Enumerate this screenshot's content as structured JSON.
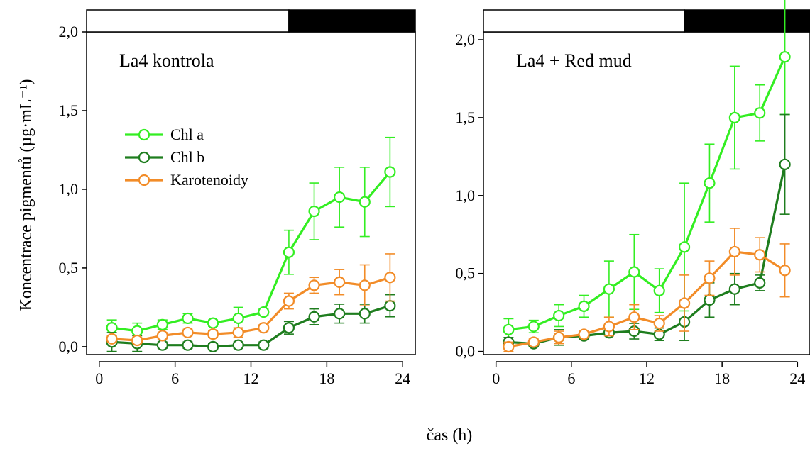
{
  "figure": {
    "ylabel": "Koncentrace pigmentů (µg·mL⁻¹)",
    "xlabel": "čas (h)"
  },
  "legend": [
    {
      "label": "Chl a",
      "color": "#33ee22"
    },
    {
      "label": "Chl b",
      "color": "#1e7d1e"
    },
    {
      "label": "Karotenoidy",
      "color": "#f28c28"
    }
  ],
  "chart_data": [
    {
      "type": "line",
      "panel_label": "La4 kontrola",
      "x": [
        1,
        3,
        5,
        7,
        9,
        11,
        13,
        15,
        17,
        19,
        21,
        23
      ],
      "xlim": [
        -1,
        25
      ],
      "ylim": [
        -0.05,
        2.0
      ],
      "xticks": [
        0,
        6,
        12,
        18,
        24
      ],
      "yticks": [
        0.0,
        0.5,
        1.0,
        1.5,
        2.0
      ],
      "ytick_labels": [
        "0,0",
        "0,5",
        "1,0",
        "1,5",
        "2,0"
      ],
      "light_dark_bar": {
        "light": [
          -1,
          15
        ],
        "dark": [
          15,
          25
        ]
      },
      "series": [
        {
          "name": "Chl a",
          "color": "#33ee22",
          "values": [
            0.12,
            0.1,
            0.14,
            0.18,
            0.15,
            0.18,
            0.22,
            0.6,
            0.86,
            0.95,
            0.92,
            1.11
          ],
          "errors": [
            0.05,
            0.05,
            0.03,
            0.03,
            0.02,
            0.07,
            0.02,
            0.14,
            0.18,
            0.19,
            0.22,
            0.22
          ]
        },
        {
          "name": "Chl b",
          "color": "#1e7d1e",
          "values": [
            0.03,
            0.02,
            0.01,
            0.01,
            0.0,
            0.01,
            0.01,
            0.12,
            0.19,
            0.21,
            0.21,
            0.26
          ],
          "errors": [
            0.06,
            0.05,
            0.02,
            0.02,
            0.02,
            0.02,
            0.02,
            0.04,
            0.05,
            0.06,
            0.06,
            0.07
          ]
        },
        {
          "name": "Karotenoidy",
          "color": "#f28c28",
          "values": [
            0.05,
            0.04,
            0.07,
            0.09,
            0.08,
            0.09,
            0.12,
            0.29,
            0.39,
            0.41,
            0.39,
            0.44
          ],
          "errors": [
            0.02,
            0.02,
            0.02,
            0.02,
            0.02,
            0.03,
            0.02,
            0.05,
            0.05,
            0.08,
            0.13,
            0.15
          ]
        }
      ]
    },
    {
      "type": "line",
      "panel_label": "La4 + Red mud",
      "x": [
        1,
        3,
        5,
        7,
        9,
        11,
        13,
        15,
        17,
        19,
        21,
        23
      ],
      "xlim": [
        -1,
        25
      ],
      "ylim": [
        -0.02,
        2.05
      ],
      "xticks": [
        0,
        6,
        12,
        18,
        24
      ],
      "yticks": [
        0.0,
        0.5,
        1.0,
        1.5,
        2.0
      ],
      "ytick_labels": [
        "0,0",
        "0,5",
        "1,0",
        "1,5",
        "2,0"
      ],
      "light_dark_bar": {
        "light": [
          -1,
          15
        ],
        "dark": [
          15,
          25
        ]
      },
      "series": [
        {
          "name": "Chl a",
          "color": "#33ee22",
          "values": [
            0.14,
            0.16,
            0.23,
            0.29,
            0.4,
            0.51,
            0.39,
            0.67,
            1.08,
            1.5,
            1.53,
            1.89
          ],
          "errors": [
            0.07,
            0.04,
            0.07,
            0.07,
            0.18,
            0.24,
            0.14,
            0.41,
            0.25,
            0.33,
            0.18,
            0.37
          ]
        },
        {
          "name": "Chl b",
          "color": "#1e7d1e",
          "values": [
            0.06,
            0.05,
            0.09,
            0.1,
            0.12,
            0.13,
            0.11,
            0.19,
            0.33,
            0.4,
            0.44,
            1.2
          ],
          "errors": [
            0.03,
            0.02,
            0.05,
            0.02,
            0.02,
            0.05,
            0.04,
            0.12,
            0.11,
            0.1,
            0.05,
            0.32
          ]
        },
        {
          "name": "Karotenoidy",
          "color": "#f28c28",
          "values": [
            0.03,
            0.06,
            0.09,
            0.11,
            0.16,
            0.22,
            0.18,
            0.31,
            0.47,
            0.64,
            0.62,
            0.52
          ],
          "errors": [
            0.03,
            0.02,
            0.04,
            0.02,
            0.06,
            0.08,
            0.05,
            0.18,
            0.11,
            0.15,
            0.11,
            0.17
          ]
        }
      ]
    }
  ]
}
